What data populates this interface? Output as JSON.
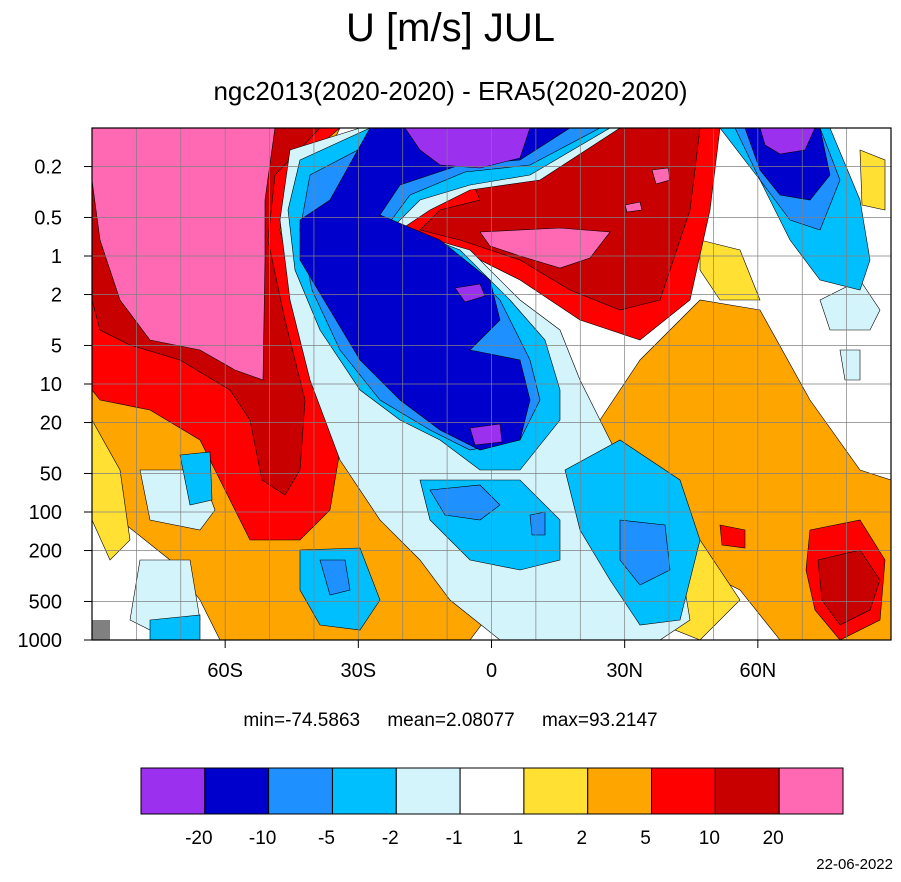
{
  "title": "U [m/s] JUL",
  "subtitle": "ngc2013(2020-2020) - ERA5(2020-2020)",
  "stats": {
    "min": "min=-74.5863",
    "mean": "mean=2.08077",
    "max": "max=93.2147"
  },
  "date": "22-06-2022",
  "chart_data": {
    "type": "heatmap",
    "title": "U [m/s] JUL",
    "subtitle": "ngc2013(2020-2020) - ERA5(2020-2020)",
    "x_tick_labels": [
      "60S",
      "30S",
      "0",
      "30N",
      "60N"
    ],
    "x_ticks": [
      -60,
      -30,
      0,
      30,
      60
    ],
    "xlim": [
      -90,
      90
    ],
    "y_tick_labels": [
      "0.2",
      "0.5",
      "1",
      "2",
      "5",
      "10",
      "20",
      "50",
      "100",
      "200",
      "500",
      "1000"
    ],
    "y_ticks": [
      0.2,
      0.5,
      1,
      2,
      5,
      10,
      20,
      50,
      100,
      200,
      500,
      1000
    ],
    "ylim": [
      1000,
      0.1
    ],
    "y_scale": "log",
    "grid": true,
    "colorbar": {
      "levels": [
        "-20",
        "-10",
        "-5",
        "-2",
        "-1",
        "1",
        "2",
        "5",
        "10",
        "20"
      ],
      "colors": [
        "#9b30ef",
        "#0000cd",
        "#1e90ff",
        "#00bfff",
        "#d4f4fb",
        "#ffffff",
        "#ffe033",
        "#ffa500",
        "#ff0000",
        "#c80000",
        "#ff69b4"
      ]
    },
    "min": -74.5863,
    "mean": 2.08077,
    "max": 93.2147
  }
}
